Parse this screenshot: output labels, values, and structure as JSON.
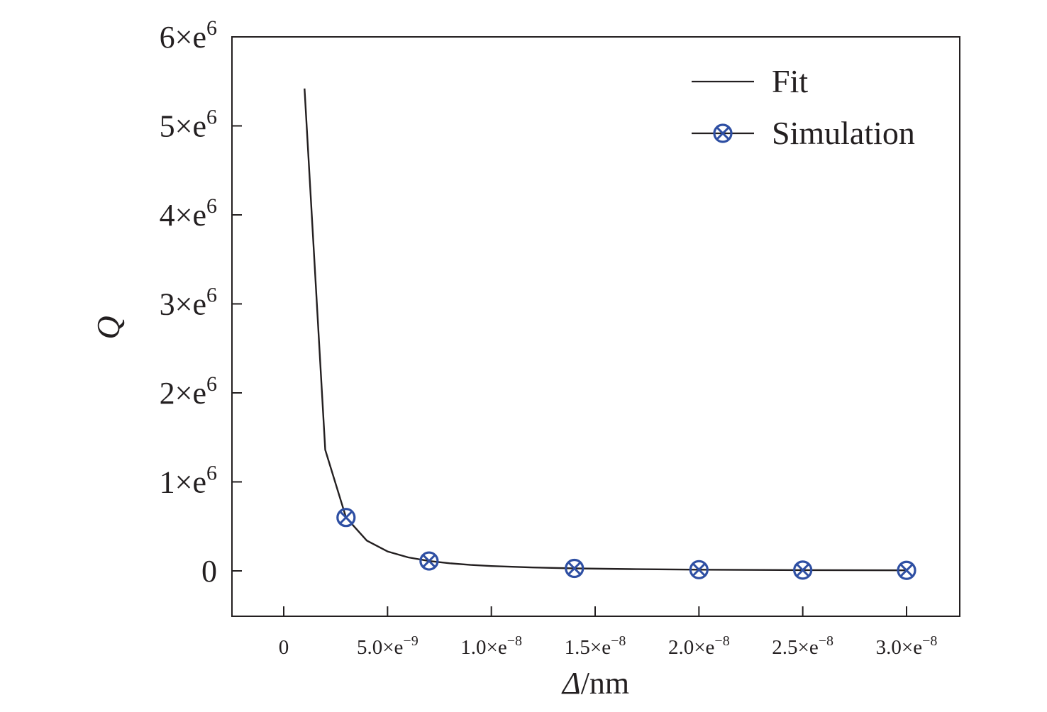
{
  "chart_data": {
    "type": "line",
    "xlabel": "Δ/nm",
    "ylabel": "Q",
    "xlim": [
      -2.5e-09,
      3.25e-08
    ],
    "ylim": [
      -500000,
      6000000
    ],
    "x_ticks": [
      {
        "value": 0,
        "mantissa": "0",
        "exp": ""
      },
      {
        "value": 5e-09,
        "mantissa": "5.0×e",
        "exp": "−9"
      },
      {
        "value": 1e-08,
        "mantissa": "1.0×e",
        "exp": "−8"
      },
      {
        "value": 1.5e-08,
        "mantissa": "1.5×e",
        "exp": "−8"
      },
      {
        "value": 2e-08,
        "mantissa": "2.0×e",
        "exp": "−8"
      },
      {
        "value": 2.5e-08,
        "mantissa": "2.5×e",
        "exp": "−8"
      },
      {
        "value": 3e-08,
        "mantissa": "3.0×e",
        "exp": "−8"
      }
    ],
    "y_ticks": [
      {
        "value": 0,
        "mantissa": "0",
        "exp": ""
      },
      {
        "value": 1000000,
        "mantissa": "1×e",
        "exp": "6"
      },
      {
        "value": 2000000,
        "mantissa": "2×e",
        "exp": "6"
      },
      {
        "value": 3000000,
        "mantissa": "3×e",
        "exp": "6"
      },
      {
        "value": 4000000,
        "mantissa": "4×e",
        "exp": "6"
      },
      {
        "value": 5000000,
        "mantissa": "5×e",
        "exp": "6"
      },
      {
        "value": 6000000,
        "mantissa": "6×e",
        "exp": "6"
      }
    ],
    "series": [
      {
        "name": "Fit",
        "style": "line",
        "color": "#231f20",
        "x": [
          1e-09,
          2e-09,
          3e-09,
          4e-09,
          5e-09,
          6e-09,
          7e-09,
          8e-09,
          9e-09,
          1e-08,
          1.2e-08,
          1.4e-08,
          1.7e-08,
          2e-08,
          2.5e-08,
          3e-08
        ],
        "y": [
          5420000,
          1360000,
          600000,
          340000,
          218000,
          151000,
          111000,
          85000,
          67000,
          54000,
          38000,
          28000,
          19000,
          13500,
          8700,
          6000
        ]
      },
      {
        "name": "Simulation",
        "style": "marker",
        "color": "#2e4fa3",
        "x": [
          3e-09,
          7e-09,
          1.4e-08,
          2e-08,
          2.5e-08,
          3e-08
        ],
        "y": [
          600000,
          111000,
          28000,
          13500,
          8700,
          6000
        ]
      }
    ],
    "legend": {
      "position": "top-right"
    },
    "grid": false
  }
}
